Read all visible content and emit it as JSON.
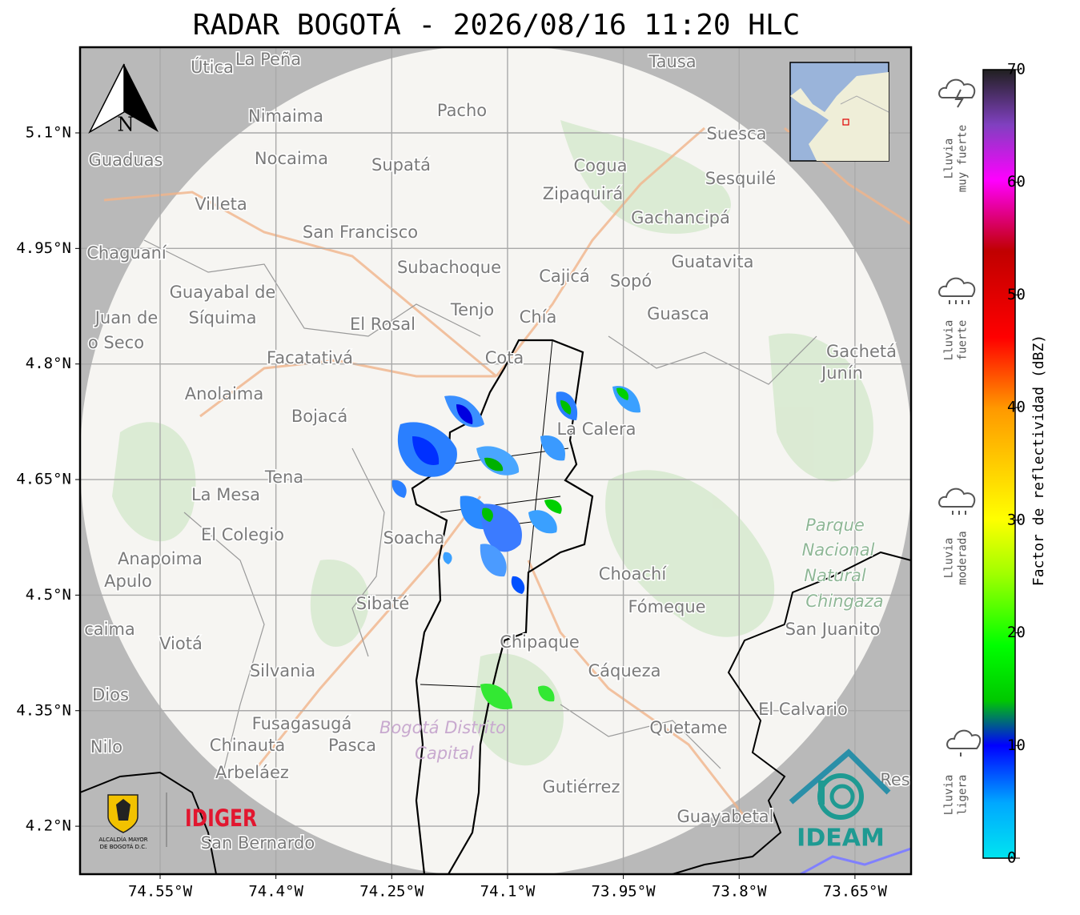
{
  "title": "RADAR BOGOTÁ - 2026/08/16 11:20 HLC",
  "map": {
    "north": "N",
    "xticks": [
      {
        "value": -74.55,
        "label": "74.55°W"
      },
      {
        "value": -74.4,
        "label": "74.4°W"
      },
      {
        "value": -74.25,
        "label": "74.25°W"
      },
      {
        "value": -74.1,
        "label": "74.1°W"
      },
      {
        "value": -73.95,
        "label": "73.95°W"
      },
      {
        "value": -73.8,
        "label": "73.8°W"
      },
      {
        "value": -73.65,
        "label": "73.65°W"
      }
    ],
    "yticks": [
      {
        "value": 5.1,
        "label": "5.1°N"
      },
      {
        "value": 4.95,
        "label": "4.95°N"
      },
      {
        "value": 4.8,
        "label": "4.8°N"
      },
      {
        "value": 4.65,
        "label": "4.65°N"
      },
      {
        "value": 4.5,
        "label": "4.5°N"
      },
      {
        "value": 4.35,
        "label": "4.35°N"
      },
      {
        "value": 4.2,
        "label": "4.2°N"
      }
    ],
    "places": [
      "Útica",
      "La Peña",
      "Tausa",
      "Pacho",
      "Nimaima",
      "Suesca",
      "Guaduas",
      "Nocaima",
      "Supatá",
      "Cogua",
      "Sesquilé",
      "Zipaquirá",
      "Villeta",
      "Gachancipá",
      "San Francisco",
      "Chaguaní",
      "Guatavita",
      "Subachoque",
      "Cajicá",
      "Sopó",
      "Guayabal de",
      "Síquima",
      "Tenjo",
      "Chía",
      "Guasca",
      "Juan de",
      "o Seco",
      "El Rosal",
      "Facatativá",
      "Cota",
      "Gachetá",
      "Junín",
      "Anolaima",
      "Bojacá",
      "La Calera",
      "Tena",
      "La Mesa",
      "El Colegio",
      "Soacha",
      "Anapoima",
      "Choachí",
      "Apulo",
      "Sibaté",
      "Fómeque",
      "San Juanito",
      "caima",
      "Viotá",
      "Chipaque",
      "Silvania",
      "Cáqueza",
      "Dios",
      "El Calvario",
      "Fusagasugá",
      "Quetame",
      "Nilo",
      "Chinauta",
      "Pasca",
      "Arbeláez",
      "Gutiérrez",
      "Res",
      "Guayabetal",
      "San Bernardo"
    ],
    "park": [
      "Parque",
      "Nacional",
      "Natural",
      "Chingaza"
    ],
    "district": [
      "Bogotá Distrito",
      "Capital"
    ],
    "logos": {
      "idiger": "IDIGER",
      "ideam": "IDEAM",
      "alcaldia": [
        "ALCALDÍA MAYOR",
        "DE BOGOTÁ D.C."
      ]
    }
  },
  "colorbar": {
    "label": "Factor de reflectividad (dBZ)",
    "min": 0,
    "max": 70,
    "ticks": [
      0,
      10,
      20,
      30,
      40,
      50,
      60,
      70
    ],
    "categories": [
      [
        "Lluvia",
        "muy fuerte"
      ],
      [
        "Lluvia",
        "fuerte"
      ],
      [
        "Lluvia",
        "moderada"
      ],
      [
        "Lluvia",
        "ligera"
      ]
    ]
  }
}
